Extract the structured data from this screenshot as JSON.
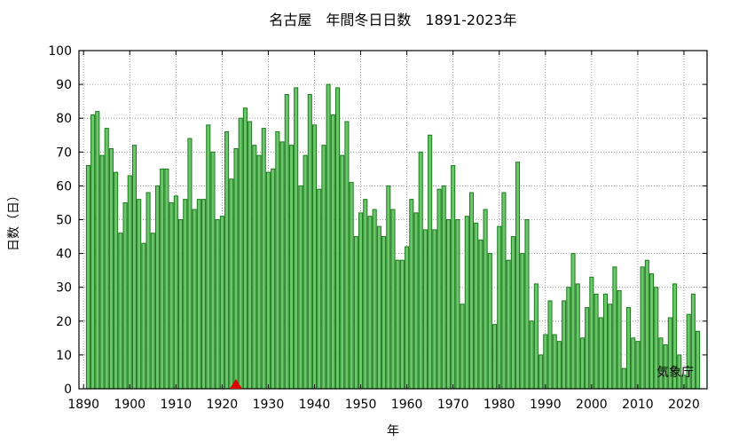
{
  "chart_data": {
    "type": "bar",
    "title": "名古屋　年間冬日日数　1891-2023年",
    "xlabel": "年",
    "ylabel": "日数（日）",
    "source": "気象庁",
    "xlim": [
      1889,
      2025
    ],
    "ylim": [
      0,
      100
    ],
    "xticks": [
      1890,
      1900,
      1910,
      1920,
      1930,
      1940,
      1950,
      1960,
      1970,
      1980,
      1990,
      2000,
      2010,
      2020
    ],
    "yticks": [
      0,
      10,
      20,
      30,
      40,
      50,
      60,
      70,
      80,
      90,
      100
    ],
    "grid": true,
    "marker": {
      "year": 1923,
      "shape": "triangle",
      "color": "#dd0000"
    },
    "colors": {
      "bar_fill": "#6cc66c",
      "bar_stroke": "#1a7a1a"
    },
    "start_year": 1891,
    "values": [
      66,
      81,
      82,
      69,
      77,
      71,
      64,
      46,
      55,
      63,
      72,
      56,
      43,
      58,
      46,
      60,
      65,
      65,
      55,
      57,
      50,
      56,
      74,
      53,
      56,
      56,
      78,
      70,
      50,
      51,
      76,
      62,
      71,
      80,
      83,
      79,
      72,
      69,
      77,
      64,
      65,
      76,
      73,
      87,
      72,
      89,
      60,
      69,
      87,
      78,
      59,
      72,
      90,
      81,
      89,
      69,
      79,
      61,
      45,
      52,
      56,
      51,
      53,
      48,
      45,
      60,
      53,
      38,
      38,
      42,
      56,
      52,
      70,
      47,
      75,
      47,
      59,
      60,
      50,
      66,
      50,
      25,
      51,
      58,
      49,
      44,
      53,
      40,
      19,
      48,
      58,
      38,
      45,
      67,
      40,
      50,
      20,
      31,
      10,
      16,
      26,
      16,
      14,
      26,
      30,
      40,
      31,
      15,
      24,
      33,
      28,
      21,
      28,
      25,
      36,
      29,
      6,
      24,
      15,
      14,
      36,
      38,
      34,
      30,
      15,
      13,
      21,
      31,
      10,
      4,
      22,
      28,
      17
    ]
  }
}
